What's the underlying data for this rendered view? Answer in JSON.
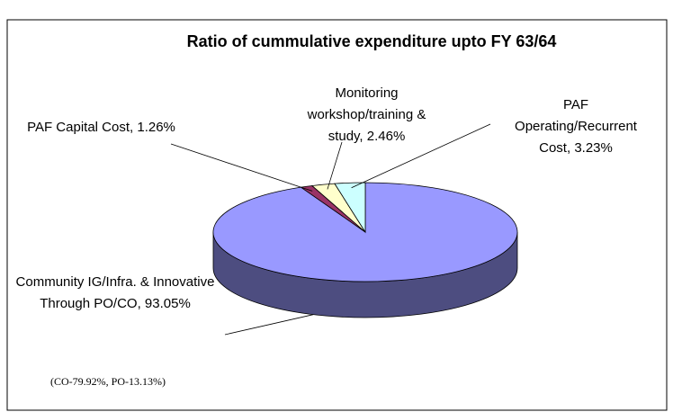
{
  "chart_data": {
    "type": "pie",
    "title": "Ratio of cummulative expenditure upto FY 63/64",
    "categories": [
      "Community IG/Infra. & Innovative Through PO/CO,",
      "PAF Capital Cost,",
      "Monitoring workshop/training & study,",
      "PAF Operating/Recurrent Cost,"
    ],
    "values": [
      93.05,
      1.26,
      2.46,
      3.23
    ],
    "value_labels": [
      "93.05%",
      "1.26%",
      "2.46%",
      "3.23%"
    ],
    "colors": [
      "#9999ff",
      "#993366",
      "#ffffcc",
      "#ccffff"
    ],
    "side_colors": [
      "#4d4d80",
      "#4d1a33",
      "#80806a",
      "#6a8080"
    ],
    "annotation": "(CO-79.92%, PO-13.13%)"
  }
}
